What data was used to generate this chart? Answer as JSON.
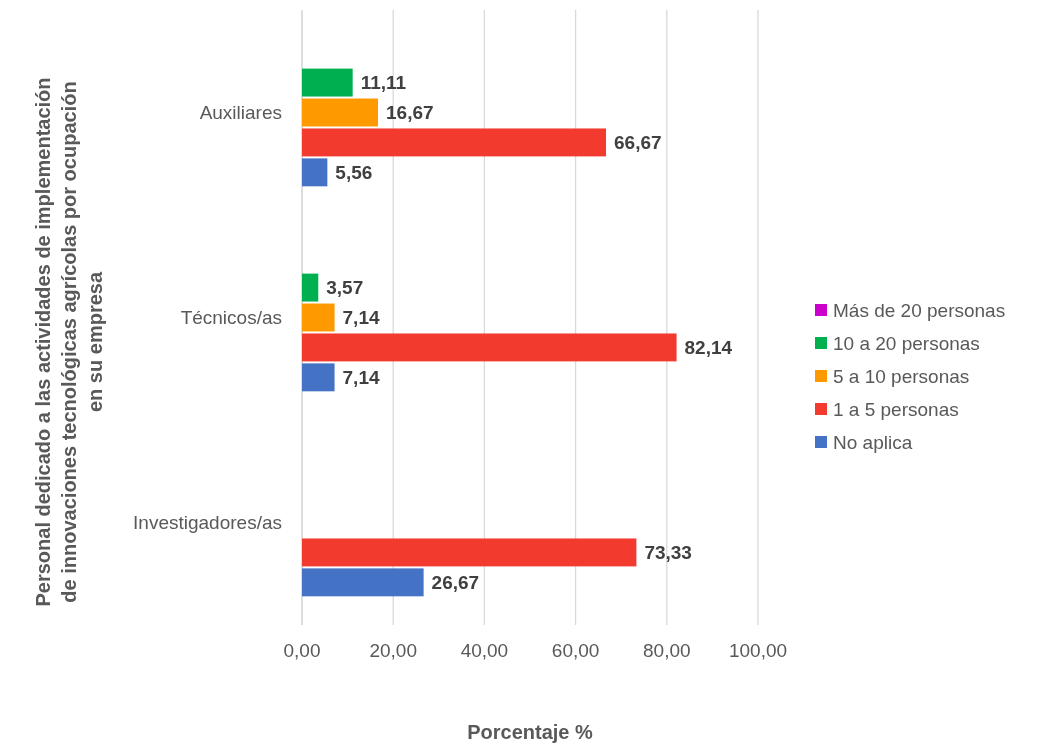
{
  "chart_data": {
    "type": "bar",
    "orientation": "horizontal",
    "categories": [
      "Auxiliares",
      "Técnicos/as",
      "Investigadores/as"
    ],
    "xlabel": "Porcentaje %",
    "ylabel": "Personal dedicado a las actividades de implementación\nde innovaciones tecnológicas agrícolas por ocupación\nen su empresa",
    "xlim": [
      0,
      100
    ],
    "xticks": [
      {
        "value": 0,
        "label": "0,00"
      },
      {
        "value": 20,
        "label": "20,00"
      },
      {
        "value": 40,
        "label": "40,00"
      },
      {
        "value": 60,
        "label": "60,00"
      },
      {
        "value": 80,
        "label": "80,00"
      },
      {
        "value": 100,
        "label": "100,00"
      }
    ],
    "grid": "x",
    "legend": "right",
    "series": [
      {
        "name": "No aplica",
        "color": "#4472c4",
        "values": [
          5.56,
          7.14,
          26.67
        ],
        "value_labels": [
          "5,56",
          "7,14",
          "26,67"
        ]
      },
      {
        "name": "1 a 5 personas",
        "color": "#f33a2e",
        "values": [
          66.67,
          82.14,
          73.33
        ],
        "value_labels": [
          "66,67",
          "82,14",
          "73,33"
        ]
      },
      {
        "name": "5 a 10 personas",
        "color": "#ff9900",
        "values": [
          16.67,
          7.14,
          null
        ],
        "value_labels": [
          "16,67",
          "7,14",
          null
        ]
      },
      {
        "name": "10 a 20 personas",
        "color": "#00b050",
        "values": [
          11.11,
          3.57,
          null
        ],
        "value_labels": [
          "11,11",
          "3,57",
          null
        ]
      },
      {
        "name": "Más de 20 personas",
        "color": "#cc00cc",
        "values": [
          null,
          null,
          null
        ],
        "value_labels": [
          null,
          null,
          null
        ]
      }
    ]
  }
}
